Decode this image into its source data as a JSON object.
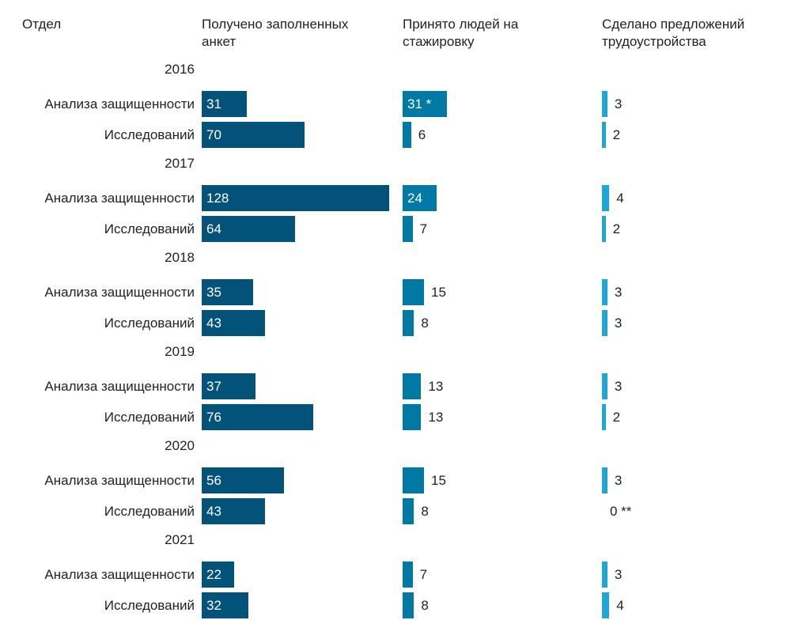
{
  "chart_data": {
    "type": "bar",
    "title": "",
    "headers": {
      "dept": "Отдел",
      "applications": "Получено заполненных анкет",
      "interns": "Принято людей на стажировку",
      "offers": "Сделано предложений трудоустройства"
    },
    "departments": [
      "Анализа защищенности",
      "Исследований"
    ],
    "series": [
      {
        "name": "Получено заполненных анкет",
        "color": "#02527a"
      },
      {
        "name": "Принято людей на стажировку",
        "color": "#0079a5"
      },
      {
        "name": "Сделано предложений трудоустройства",
        "color": "#1ea6d6"
      }
    ],
    "years": [
      {
        "year": "2016",
        "rows": [
          {
            "dept": "Анализа защищенности",
            "values": [
              31,
              31,
              3
            ],
            "labels": [
              "31",
              "31 *",
              "3"
            ]
          },
          {
            "dept": "Исследований",
            "values": [
              70,
              6,
              2
            ],
            "labels": [
              "70",
              "6",
              "2"
            ]
          }
        ]
      },
      {
        "year": "2017",
        "rows": [
          {
            "dept": "Анализа защищенности",
            "values": [
              128,
              24,
              4
            ],
            "labels": [
              "128",
              "24",
              "4"
            ]
          },
          {
            "dept": "Исследований",
            "values": [
              64,
              7,
              2
            ],
            "labels": [
              "64",
              "7",
              "2"
            ]
          }
        ]
      },
      {
        "year": "2018",
        "rows": [
          {
            "dept": "Анализа защищенности",
            "values": [
              35,
              15,
              3
            ],
            "labels": [
              "35",
              "15",
              "3"
            ]
          },
          {
            "dept": "Исследований",
            "values": [
              43,
              8,
              3
            ],
            "labels": [
              "43",
              "8",
              "3"
            ]
          }
        ]
      },
      {
        "year": "2019",
        "rows": [
          {
            "dept": "Анализа защищенности",
            "values": [
              37,
              13,
              3
            ],
            "labels": [
              "37",
              "13",
              "3"
            ]
          },
          {
            "dept": "Исследований",
            "values": [
              76,
              13,
              2
            ],
            "labels": [
              "76",
              "13",
              "2"
            ]
          }
        ]
      },
      {
        "year": "2020",
        "rows": [
          {
            "dept": "Анализа защищенности",
            "values": [
              56,
              15,
              3
            ],
            "labels": [
              "56",
              "15",
              "3"
            ]
          },
          {
            "dept": "Исследований",
            "values": [
              43,
              8,
              0
            ],
            "labels": [
              "43",
              "8",
              "0 **"
            ]
          }
        ]
      },
      {
        "year": "2021",
        "rows": [
          {
            "dept": "Анализа защищенности",
            "values": [
              22,
              7,
              3
            ],
            "labels": [
              "22",
              "7",
              "3"
            ]
          },
          {
            "dept": "Исследований",
            "values": [
              32,
              8,
              4
            ],
            "labels": [
              "32",
              "8",
              "4"
            ]
          }
        ]
      }
    ]
  }
}
